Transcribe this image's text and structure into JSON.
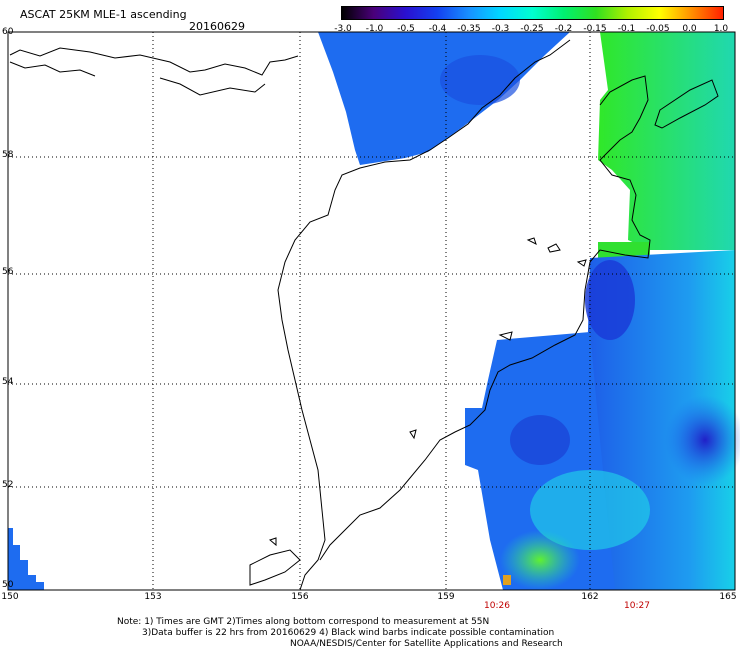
{
  "title": "ASCAT 25KM MLE-1 ascending",
  "date": "20160629",
  "colorbar": {
    "ticks": [
      "-3.0",
      "-1.0",
      "-0.5",
      "-0.4",
      "-0.35",
      "-0.3",
      "-0.25",
      "-0.2",
      "-0.15",
      "-0.1",
      "-0.05",
      "0.0",
      "1.0"
    ],
    "colors": [
      "#000000",
      "#4a007a",
      "#2a10d0",
      "#1440f0",
      "#1890ff",
      "#00d8ff",
      "#00ffd0",
      "#00f070",
      "#30e020",
      "#b0f000",
      "#ffff00",
      "#ff9000",
      "#ff2000"
    ]
  },
  "lat_labels": [
    "60",
    "58",
    "56",
    "54",
    "52",
    "50"
  ],
  "lon_labels": [
    "150",
    "153",
    "156",
    "159",
    "162",
    "165"
  ],
  "times": [
    "10:26",
    "10:27"
  ],
  "notes": [
    "Note: 1) Times are GMT 2)Times along bottom correspond to measurement at 55N",
    "3)Data buffer is 22 hrs from 20160629 4) Black wind barbs indicate possible contamination",
    "NOAA/NESDIS/Center for Satellite Applications and Research"
  ],
  "data_colors": {
    "blue": "#1e6cf0",
    "deep_blue": "#1e3cdc",
    "cyan": "#20e8e0",
    "green": "#28e028"
  }
}
